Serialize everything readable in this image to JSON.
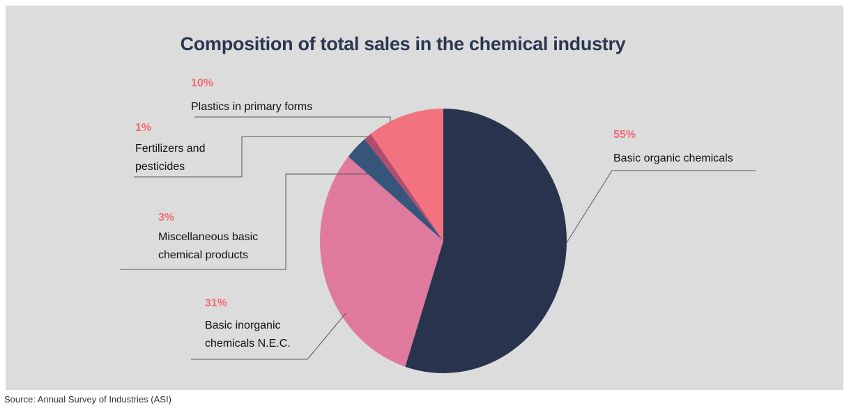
{
  "chart_data": {
    "type": "pie",
    "title": "Composition of total sales in the chemical industry",
    "slices": [
      {
        "label": "Basic organic chemicals",
        "value": 55,
        "pct_label": "55%",
        "color": "#28334d"
      },
      {
        "label": "Basic inorganic chemicals N.E.C.",
        "value": 31,
        "pct_label": "31%",
        "color": "#df7a9e"
      },
      {
        "label": "Miscellaneous basic chemical products",
        "value": 3,
        "pct_label": "3%",
        "color": "#35557a"
      },
      {
        "label": "Fertilizers and pesticides",
        "value": 1,
        "pct_label": "1%",
        "color": "#b14d6e"
      },
      {
        "label": "Plastics in primary forms",
        "value": 10,
        "pct_label": "10%",
        "color": "#f2737f"
      }
    ],
    "percent_color": "#f26b78"
  },
  "source": "Source: Annual Survey of Industries (ASI)"
}
